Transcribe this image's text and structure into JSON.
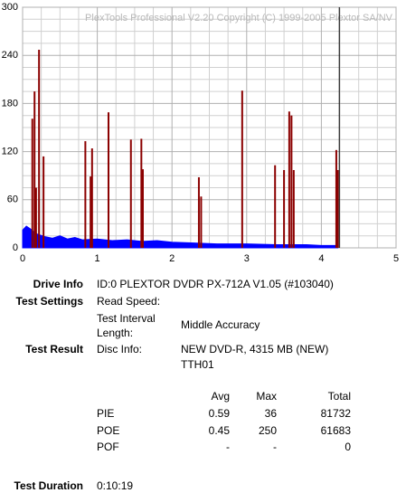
{
  "chart_data": {
    "type": "bar",
    "title": "PlexTools Professional V2.20 Copyright (C) 1999-2005 Plextor SA/NV",
    "xlim": [
      0,
      5
    ],
    "xticks": [
      0,
      1,
      2,
      3,
      4,
      5
    ],
    "ylim": [
      0,
      300
    ],
    "yticks": [
      0,
      60,
      120,
      180,
      240,
      300
    ],
    "grid": true,
    "end_x": 4.24,
    "series": [
      {
        "type": "area",
        "color": "#0000ff",
        "x": [
          0,
          0.05,
          0.1,
          0.15,
          0.2,
          0.3,
          0.4,
          0.5,
          0.6,
          0.7,
          0.8,
          1.0,
          1.2,
          1.4,
          1.6,
          1.8,
          2.0,
          2.3,
          2.6,
          3.0,
          3.4,
          3.8,
          4.0,
          4.22
        ],
        "values": [
          22,
          27,
          24,
          20,
          17,
          14,
          12,
          15,
          11,
          13,
          10,
          11,
          9,
          10,
          8,
          9,
          7,
          6,
          5,
          5,
          4,
          4,
          3,
          3
        ]
      },
      {
        "type": "bar",
        "color": "#8b0000",
        "x": [
          0.13,
          0.16,
          0.18,
          0.22,
          0.28,
          0.84,
          0.91,
          0.93,
          1.15,
          1.45,
          1.59,
          1.61,
          2.36,
          2.39,
          2.94,
          3.38,
          3.5,
          3.57,
          3.6,
          3.63,
          4.2,
          4.22
        ],
        "values": [
          161,
          195,
          75,
          247,
          114,
          133,
          89,
          124,
          169,
          135,
          136,
          98,
          88,
          64,
          196,
          103,
          97,
          170,
          165,
          97,
          122,
          97
        ]
      }
    ]
  },
  "info": {
    "drive_label": "Drive Info",
    "drive": "ID:0 PLEXTOR DVDR PX-712A V1.05 (#103040)",
    "settings_label": "Test Settings",
    "read_speed": "Read Speed:",
    "interval_label": "Test Interval Length:",
    "interval": "Middle Accuracy",
    "result_label": "Test Result",
    "disc_label": "Disc Info:",
    "disc": [
      "NEW DVD-R, 4315 MB (NEW)",
      "TTH01"
    ],
    "table": {
      "header": [
        "Avg",
        "Max",
        "Total"
      ],
      "rows": [
        [
          "PIE",
          "0.59",
          "36",
          "81732"
        ],
        [
          "POE",
          "0.45",
          "250",
          "61683"
        ],
        [
          "POF",
          "-",
          "-",
          "0"
        ]
      ]
    },
    "duration_label": "Test Duration",
    "duration": "0:10:19"
  }
}
